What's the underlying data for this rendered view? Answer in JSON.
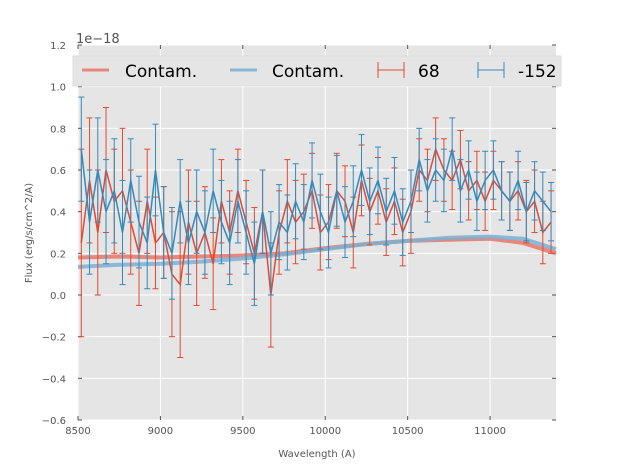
{
  "chart_data": {
    "type": "line",
    "title": "",
    "xlabel": "Wavelength (A)",
    "ylabel": "Flux (erg/s/cm^2/A)",
    "y_offset_label": "1e−18",
    "xlim": [
      8500,
      11400
    ],
    "ylim": [
      -0.6,
      1.2
    ],
    "xticks": [
      8500,
      9000,
      9500,
      10000,
      10500,
      11000
    ],
    "xtick_labels": [
      "8500",
      "9000",
      "9500",
      "10000",
      "10500",
      "11000"
    ],
    "yticks": [
      -0.6,
      -0.4,
      -0.2,
      0.0,
      0.2,
      0.4,
      0.6,
      0.8,
      1.0,
      1.2
    ],
    "ytick_labels": [
      "−0.6",
      "−0.4",
      "−0.2",
      "0.0",
      "0.2",
      "0.4",
      "0.6",
      "0.8",
      "1.0",
      "1.2"
    ],
    "grid": true,
    "legend_placement": "top",
    "x_start": 8520,
    "x_step": 50,
    "series": [
      {
        "name": "Contam.",
        "kind": "contam",
        "color": "#e8776a",
        "x": [
          8500,
          8750,
          9000,
          9250,
          9500,
          9750,
          10000,
          10250,
          10500,
          10750,
          11000,
          11200,
          11400
        ],
        "values": [
          0.18,
          0.185,
          0.18,
          0.185,
          0.19,
          0.2,
          0.225,
          0.245,
          0.26,
          0.265,
          0.27,
          0.25,
          0.2
        ]
      },
      {
        "name": "Contam.",
        "kind": "contam",
        "color": "#7ab0d4",
        "x": [
          8500,
          8750,
          9000,
          9250,
          9500,
          9750,
          10000,
          10250,
          10500,
          10750,
          11000,
          11200,
          11400
        ],
        "values": [
          0.135,
          0.145,
          0.15,
          0.16,
          0.175,
          0.195,
          0.22,
          0.245,
          0.26,
          0.275,
          0.28,
          0.27,
          0.22
        ]
      },
      {
        "name": "68",
        "kind": "errorbar",
        "color": "#e24a33",
        "values": [
          0.25,
          0.55,
          0.3,
          0.6,
          0.45,
          0.5,
          0.35,
          0.2,
          0.45,
          0.25,
          0.3,
          0.1,
          0.05,
          0.35,
          0.2,
          0.3,
          0.15,
          0.45,
          0.3,
          0.5,
          0.35,
          0.2,
          0.4,
          0.0,
          0.3,
          0.45,
          0.35,
          0.4,
          0.5,
          0.3,
          0.35,
          0.5,
          0.45,
          0.3,
          0.55,
          0.4,
          0.5,
          0.35,
          0.45,
          0.3,
          0.4,
          0.6,
          0.55,
          0.7,
          0.6,
          0.55,
          0.65,
          0.5,
          0.55,
          0.45,
          0.55,
          0.5,
          0.45,
          0.5,
          0.4,
          0.45,
          0.3,
          0.35
        ],
        "yerr": [
          0.45,
          0.3,
          0.3,
          0.3,
          0.25,
          0.3,
          0.25,
          0.25,
          0.25,
          0.22,
          0.22,
          0.3,
          0.35,
          0.25,
          0.25,
          0.22,
          0.22,
          0.2,
          0.2,
          0.2,
          0.2,
          0.22,
          0.2,
          0.25,
          0.2,
          0.2,
          0.2,
          0.18,
          0.18,
          0.18,
          0.18,
          0.18,
          0.17,
          0.17,
          0.17,
          0.16,
          0.16,
          0.16,
          0.16,
          0.16,
          0.2,
          0.15,
          0.15,
          0.15,
          0.15,
          0.14,
          0.14,
          0.14,
          0.14,
          0.14,
          0.14,
          0.14,
          0.14,
          0.14,
          0.15,
          0.15,
          0.15,
          0.15
        ]
      },
      {
        "name": "-152",
        "kind": "errorbar",
        "color": "#348abd",
        "values": [
          0.7,
          0.35,
          0.6,
          0.4,
          0.5,
          0.3,
          0.55,
          0.35,
          0.25,
          0.6,
          0.3,
          0.2,
          0.45,
          0.25,
          0.4,
          0.3,
          0.5,
          0.35,
          0.25,
          0.45,
          0.3,
          0.15,
          0.4,
          0.2,
          0.35,
          0.3,
          0.45,
          0.35,
          0.55,
          0.4,
          0.3,
          0.5,
          0.35,
          0.45,
          0.6,
          0.45,
          0.55,
          0.4,
          0.5,
          0.35,
          0.45,
          0.65,
          0.5,
          0.6,
          0.55,
          0.7,
          0.5,
          0.6,
          0.45,
          0.55,
          0.6,
          0.5,
          0.45,
          0.55,
          0.4,
          0.5,
          0.45,
          0.4
        ],
        "yerr": [
          0.25,
          0.25,
          0.25,
          0.25,
          0.25,
          0.25,
          0.2,
          0.22,
          0.22,
          0.22,
          0.22,
          0.22,
          0.2,
          0.2,
          0.2,
          0.2,
          0.2,
          0.2,
          0.2,
          0.2,
          0.2,
          0.2,
          0.2,
          0.2,
          0.18,
          0.18,
          0.18,
          0.18,
          0.18,
          0.18,
          0.17,
          0.17,
          0.17,
          0.17,
          0.17,
          0.16,
          0.16,
          0.16,
          0.16,
          0.16,
          0.15,
          0.15,
          0.15,
          0.15,
          0.15,
          0.15,
          0.15,
          0.14,
          0.14,
          0.14,
          0.14,
          0.14,
          0.14,
          0.14,
          0.14,
          0.14,
          0.14,
          0.14
        ]
      }
    ]
  }
}
